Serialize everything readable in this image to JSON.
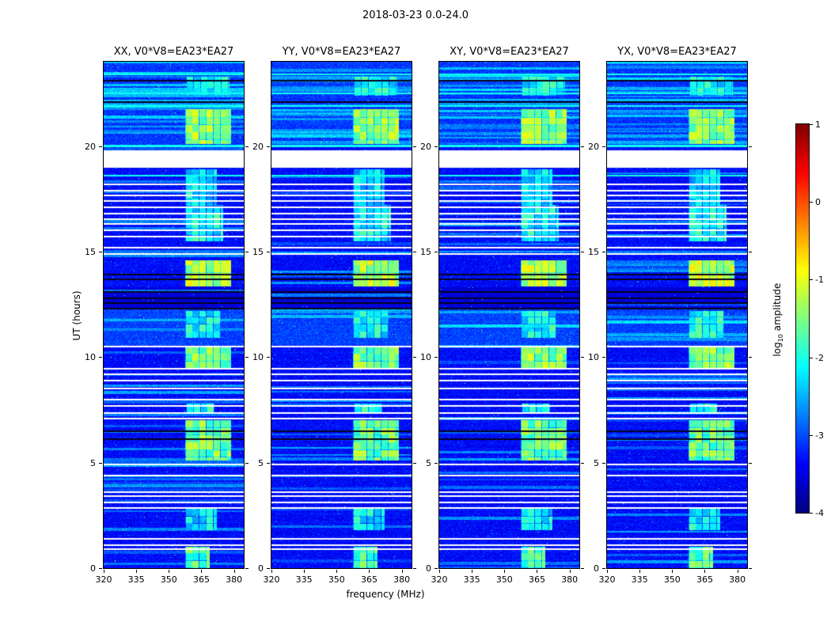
{
  "chart_data": {
    "type": "heatmap",
    "title": "2018-03-23 0.0-24.0",
    "xlabel": "frequency (MHz)",
    "ylabel": "UT (hours)",
    "x_range": [
      320,
      384.5
    ],
    "y_range": [
      0,
      24
    ],
    "x_ticks": [
      320,
      335,
      350,
      365,
      380
    ],
    "y_ticks": [
      0,
      5,
      10,
      15,
      20
    ],
    "grid": false,
    "panels": [
      {
        "title": "XX, V0*V8=EA23*EA27"
      },
      {
        "title": "YY, V0*V8=EA23*EA27"
      },
      {
        "title": "XY, V0*V8=EA23*EA27"
      },
      {
        "title": "YX, V0*V8=EA23*EA27"
      }
    ],
    "colorbar": {
      "label_prefix": "log",
      "label_sub": "10",
      "label_suffix": " amplitude",
      "ticks": [
        1,
        0,
        -1,
        -2,
        -3,
        -4
      ],
      "vmin": -4,
      "vmax": 1,
      "colormap": "jet"
    },
    "background_level": -3.35,
    "noise_sigma": 0.25,
    "features": {
      "data_gaps_ut": [
        [
          18.97,
          19.8
        ]
      ],
      "white_lines_ut": [
        0.9,
        1.1,
        1.4,
        2.85,
        3.1,
        3.4,
        3.6,
        4.4,
        4.9,
        7.1,
        7.35,
        7.7,
        8.0,
        8.5,
        8.9,
        9.2,
        9.45,
        10.5,
        14.9,
        15.2,
        15.7,
        16.0,
        16.3,
        16.55,
        16.8,
        17.1,
        17.4,
        17.65,
        17.9,
        18.2
      ],
      "black_lines_ut": [
        6.1,
        6.5,
        12.3,
        12.55,
        12.8,
        13.1,
        13.7,
        13.9,
        22.1,
        23.1
      ],
      "cyan_lines_ut": [
        18.6,
        20.0,
        21.9,
        22.5,
        23.4
      ],
      "bright_band_freq_range": [
        357.5,
        378.5
      ],
      "bright_band_windows": [
        {
          "ut": [
            0.0,
            1.0
          ],
          "intensity": 1.0,
          "freq": [
            357.5,
            369.0
          ]
        },
        {
          "ut": [
            1.8,
            2.9
          ],
          "intensity": 0.45,
          "freq": [
            357.5,
            372.0
          ]
        },
        {
          "ut": [
            5.1,
            7.0
          ],
          "intensity": 1.2,
          "freq": [
            357.5,
            378.5
          ]
        },
        {
          "ut": [
            7.3,
            7.8
          ],
          "intensity": 0.6,
          "freq": [
            358.0,
            371.0
          ]
        },
        {
          "ut": [
            9.5,
            10.45
          ],
          "intensity": 1.3,
          "freq": [
            357.5,
            378.5
          ]
        },
        {
          "ut": [
            10.9,
            12.2
          ],
          "intensity": 0.5,
          "freq": [
            357.5,
            374.0
          ]
        },
        {
          "ut": [
            13.35,
            14.6
          ],
          "intensity": 1.6,
          "freq": [
            357.5,
            378.5
          ]
        },
        {
          "ut": [
            15.5,
            17.2
          ],
          "intensity": 0.5,
          "freq": [
            357.5,
            375.0
          ]
        },
        {
          "ut": [
            17.2,
            18.9
          ],
          "intensity": 0.25,
          "freq": [
            357.5,
            372.0
          ]
        },
        {
          "ut": [
            20.1,
            21.75
          ],
          "intensity": 1.4,
          "freq": [
            357.5,
            378.5
          ]
        },
        {
          "ut": [
            22.4,
            23.3
          ],
          "intensity": 0.5,
          "freq": [
            358.0,
            378.0
          ]
        }
      ],
      "background_regions": [
        {
          "ut": [
            10.55,
            12.25
          ],
          "level": -3.05,
          "stripe_prob": 0.08
        },
        {
          "ut": [
            12.25,
            13.3
          ],
          "level": -3.55,
          "stripe_prob": 0.05
        },
        {
          "ut": [
            20.0,
            24.0
          ],
          "level": -3.1,
          "stripe_prob": 0.25
        }
      ]
    }
  }
}
